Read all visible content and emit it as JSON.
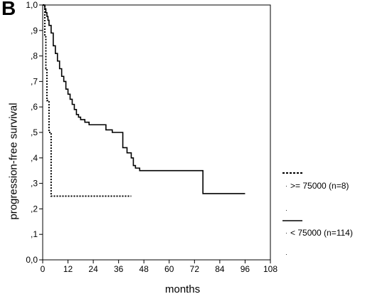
{
  "panel_label": "B",
  "chart_data": {
    "type": "line",
    "title": "",
    "xlabel": "months",
    "ylabel": "progression-free survival",
    "xlim": [
      0,
      108
    ],
    "ylim": [
      0,
      1.0
    ],
    "xticks": [
      0,
      12,
      24,
      36,
      48,
      60,
      72,
      84,
      96,
      108
    ],
    "xtick_labels": [
      "0",
      "12",
      "24",
      "36",
      "48",
      "60",
      "72",
      "84",
      "96",
      "108"
    ],
    "yticks": [
      0,
      0.1,
      0.2,
      0.3,
      0.4,
      0.5,
      0.6,
      0.7,
      0.8,
      0.9,
      1.0
    ],
    "ytick_labels": [
      "0,0",
      ",1",
      ",2",
      ",3",
      ",4",
      ",5",
      ",6",
      ",7",
      ",8",
      ",9",
      "1,0"
    ],
    "step": true,
    "grid": false,
    "legend_position": "right",
    "series": [
      {
        "name": ">= 75000 (n=8)",
        "style": "dashed",
        "x": [
          0,
          1,
          1.5,
          2,
          3,
          4,
          42
        ],
        "y": [
          1.0,
          0.875,
          0.75,
          0.625,
          0.5,
          0.25,
          0.25
        ]
      },
      {
        "name": "< 75000 (n=114)",
        "style": "solid",
        "x": [
          0,
          1,
          1.5,
          2,
          2.5,
          3,
          4,
          5,
          6,
          7,
          8,
          9,
          10,
          11,
          12,
          13,
          14,
          15,
          16,
          17,
          18,
          20,
          22,
          24,
          30,
          33,
          36,
          38,
          40,
          42,
          43,
          44,
          46,
          60,
          72,
          75,
          76,
          96
        ],
        "y": [
          1.0,
          0.985,
          0.97,
          0.955,
          0.94,
          0.92,
          0.89,
          0.84,
          0.81,
          0.78,
          0.75,
          0.72,
          0.7,
          0.67,
          0.65,
          0.63,
          0.61,
          0.59,
          0.57,
          0.56,
          0.55,
          0.54,
          0.53,
          0.53,
          0.51,
          0.5,
          0.5,
          0.44,
          0.42,
          0.4,
          0.37,
          0.36,
          0.35,
          0.35,
          0.35,
          0.35,
          0.26,
          0.26
        ]
      }
    ]
  }
}
